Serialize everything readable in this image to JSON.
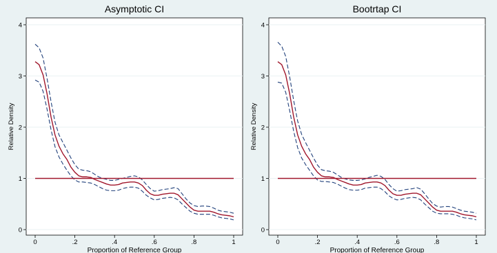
{
  "chart_data": [
    {
      "type": "line",
      "title": "Asymptotic CI",
      "xlabel": "Proportion of Reference Group",
      "ylabel": "Relative Density",
      "xlim": [
        0,
        1
      ],
      "ylim": [
        0,
        4
      ],
      "xticks": [
        0,
        0.2,
        0.4,
        0.6,
        0.8,
        1
      ],
      "xtick_labels": [
        "0",
        ".2",
        ".4",
        ".6",
        ".8",
        "1"
      ],
      "yticks": [
        0,
        1,
        2,
        3,
        4
      ],
      "ytick_labels": [
        "0",
        "1",
        "2",
        "3",
        "4"
      ],
      "grid": true,
      "x": [
        0,
        0.02,
        0.04,
        0.06,
        0.08,
        0.1,
        0.12,
        0.14,
        0.16,
        0.18,
        0.2,
        0.22,
        0.24,
        0.26,
        0.28,
        0.3,
        0.32,
        0.34,
        0.36,
        0.38,
        0.4,
        0.42,
        0.44,
        0.46,
        0.48,
        0.5,
        0.52,
        0.54,
        0.56,
        0.58,
        0.6,
        0.62,
        0.64,
        0.66,
        0.68,
        0.7,
        0.72,
        0.74,
        0.76,
        0.78,
        0.8,
        0.82,
        0.84,
        0.86,
        0.88,
        0.9,
        0.92,
        0.94,
        0.96,
        0.98,
        1.0
      ],
      "series": [
        {
          "role": "upper",
          "color": "#1f3f7a",
          "dash": true,
          "values": [
            3.62,
            3.55,
            3.35,
            2.95,
            2.5,
            2.1,
            1.85,
            1.7,
            1.55,
            1.4,
            1.27,
            1.18,
            1.16,
            1.15,
            1.13,
            1.08,
            1.03,
            1.0,
            0.98,
            0.96,
            0.96,
            0.98,
            1.0,
            1.02,
            1.04,
            1.05,
            1.03,
            0.97,
            0.88,
            0.8,
            0.75,
            0.76,
            0.78,
            0.79,
            0.8,
            0.82,
            0.8,
            0.7,
            0.6,
            0.52,
            0.47,
            0.45,
            0.46,
            0.46,
            0.45,
            0.42,
            0.38,
            0.36,
            0.35,
            0.34,
            0.32
          ]
        },
        {
          "role": "estimate",
          "color": "#a0162b",
          "dash": false,
          "values": [
            3.28,
            3.22,
            3.02,
            2.65,
            2.2,
            1.85,
            1.63,
            1.48,
            1.37,
            1.22,
            1.12,
            1.05,
            1.03,
            1.03,
            1.02,
            0.98,
            0.95,
            0.92,
            0.89,
            0.87,
            0.87,
            0.88,
            0.91,
            0.92,
            0.93,
            0.93,
            0.91,
            0.86,
            0.77,
            0.7,
            0.67,
            0.67,
            0.69,
            0.7,
            0.71,
            0.71,
            0.68,
            0.6,
            0.52,
            0.44,
            0.38,
            0.36,
            0.36,
            0.36,
            0.36,
            0.34,
            0.31,
            0.29,
            0.28,
            0.27,
            0.25
          ]
        },
        {
          "role": "lower",
          "color": "#1f3f7a",
          "dash": true,
          "values": [
            2.92,
            2.88,
            2.7,
            2.35,
            1.95,
            1.62,
            1.42,
            1.28,
            1.16,
            1.05,
            0.97,
            0.93,
            0.93,
            0.92,
            0.91,
            0.88,
            0.84,
            0.8,
            0.77,
            0.76,
            0.76,
            0.77,
            0.8,
            0.82,
            0.83,
            0.83,
            0.81,
            0.75,
            0.67,
            0.62,
            0.58,
            0.59,
            0.61,
            0.62,
            0.63,
            0.62,
            0.58,
            0.5,
            0.43,
            0.36,
            0.32,
            0.3,
            0.3,
            0.3,
            0.3,
            0.28,
            0.25,
            0.23,
            0.22,
            0.21,
            0.19
          ]
        },
        {
          "role": "reference",
          "color": "#a0162b",
          "dash": false,
          "x": [
            0,
            1
          ],
          "values": [
            1,
            1
          ]
        }
      ]
    },
    {
      "type": "line",
      "title": "Bootrtap CI",
      "xlabel": "Proportion of Reference Group",
      "ylabel": "Relative Density",
      "xlim": [
        0,
        1
      ],
      "ylim": [
        0,
        4
      ],
      "xticks": [
        0,
        0.2,
        0.4,
        0.6,
        0.8,
        1
      ],
      "xtick_labels": [
        "0",
        ".2",
        ".4",
        ".6",
        ".8",
        "1"
      ],
      "yticks": [
        0,
        1,
        2,
        3,
        4
      ],
      "ytick_labels": [
        "0",
        "1",
        "2",
        "3",
        "4"
      ],
      "grid": true,
      "x": [
        0,
        0.02,
        0.04,
        0.06,
        0.08,
        0.1,
        0.12,
        0.14,
        0.16,
        0.18,
        0.2,
        0.22,
        0.24,
        0.26,
        0.28,
        0.3,
        0.32,
        0.34,
        0.36,
        0.38,
        0.4,
        0.42,
        0.44,
        0.46,
        0.48,
        0.5,
        0.52,
        0.54,
        0.56,
        0.58,
        0.6,
        0.62,
        0.64,
        0.66,
        0.68,
        0.7,
        0.72,
        0.74,
        0.76,
        0.78,
        0.8,
        0.82,
        0.84,
        0.86,
        0.88,
        0.9,
        0.92,
        0.94,
        0.96,
        0.98,
        1.0
      ],
      "series": [
        {
          "role": "upper",
          "color": "#1f3f7a",
          "dash": true,
          "values": [
            3.66,
            3.58,
            3.38,
            2.98,
            2.52,
            2.12,
            1.86,
            1.7,
            1.55,
            1.4,
            1.26,
            1.17,
            1.15,
            1.14,
            1.12,
            1.07,
            1.02,
            0.99,
            0.97,
            0.96,
            0.96,
            0.97,
            0.99,
            1.02,
            1.04,
            1.06,
            1.04,
            0.98,
            0.88,
            0.8,
            0.75,
            0.76,
            0.78,
            0.79,
            0.8,
            0.82,
            0.79,
            0.7,
            0.6,
            0.51,
            0.46,
            0.44,
            0.45,
            0.45,
            0.44,
            0.41,
            0.38,
            0.36,
            0.35,
            0.34,
            0.32
          ]
        },
        {
          "role": "estimate",
          "color": "#a0162b",
          "dash": false,
          "values": [
            3.28,
            3.22,
            3.02,
            2.65,
            2.2,
            1.85,
            1.63,
            1.48,
            1.37,
            1.22,
            1.12,
            1.05,
            1.03,
            1.03,
            1.02,
            0.98,
            0.95,
            0.92,
            0.89,
            0.87,
            0.87,
            0.88,
            0.91,
            0.92,
            0.93,
            0.93,
            0.91,
            0.86,
            0.77,
            0.7,
            0.67,
            0.67,
            0.69,
            0.7,
            0.71,
            0.71,
            0.68,
            0.6,
            0.52,
            0.44,
            0.38,
            0.36,
            0.36,
            0.36,
            0.36,
            0.34,
            0.31,
            0.29,
            0.28,
            0.27,
            0.25
          ]
        },
        {
          "role": "lower",
          "color": "#1f3f7a",
          "dash": true,
          "values": [
            2.88,
            2.86,
            2.68,
            2.32,
            1.92,
            1.6,
            1.4,
            1.27,
            1.16,
            1.05,
            0.97,
            0.94,
            0.94,
            0.93,
            0.92,
            0.89,
            0.85,
            0.81,
            0.78,
            0.77,
            0.77,
            0.78,
            0.81,
            0.82,
            0.83,
            0.83,
            0.8,
            0.74,
            0.66,
            0.61,
            0.58,
            0.59,
            0.61,
            0.62,
            0.63,
            0.62,
            0.58,
            0.5,
            0.43,
            0.36,
            0.32,
            0.31,
            0.31,
            0.31,
            0.3,
            0.28,
            0.25,
            0.23,
            0.22,
            0.21,
            0.19
          ]
        },
        {
          "role": "reference",
          "color": "#a0162b",
          "dash": false,
          "x": [
            0,
            1
          ],
          "values": [
            1,
            1
          ]
        }
      ]
    }
  ]
}
